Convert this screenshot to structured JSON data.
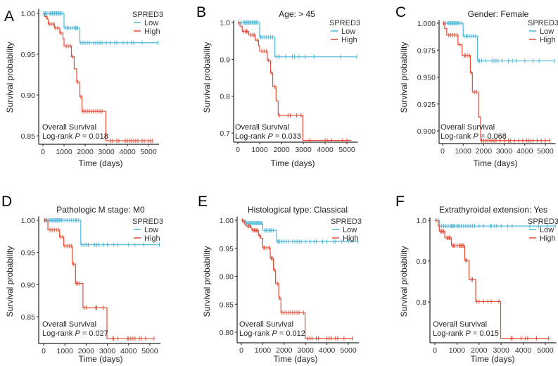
{
  "chart_data": [
    {
      "type": "line",
      "letter": "A",
      "title": "",
      "xlabel": "Time (days)",
      "ylabel": "Survival probability",
      "legend_title": "SPRED3",
      "legend_position": "top-right",
      "annotation": "Overall Survival",
      "test": "Log-rank",
      "p_label": "P",
      "p_value": "0.018",
      "xticks": [
        0,
        1000,
        2000,
        3000,
        4000,
        5000
      ],
      "xlim": [
        -100,
        5500
      ],
      "yticks": [
        "0.85",
        "0.90",
        "0.95",
        "1.00"
      ],
      "ylim": [
        0.843,
        1.003
      ],
      "series": [
        {
          "name": "Low",
          "color": "#4DB8D8",
          "steps": [
            [
              0,
              1.0
            ],
            [
              1000,
              0.982
            ],
            [
              1750,
              0.964
            ]
          ],
          "end": 5450,
          "censor": [
            50,
            120,
            200,
            300,
            350,
            400,
            450,
            500,
            550,
            600,
            650,
            700,
            750,
            800,
            850,
            900,
            1050,
            1150,
            1200,
            1300,
            1400,
            1500,
            1550,
            1600,
            1650,
            1800,
            1900,
            2000,
            2100,
            2200,
            2400,
            2500,
            2600,
            2700,
            2800,
            3000,
            3200,
            3400,
            3500,
            3800,
            4000,
            4200,
            4300,
            4700,
            5450
          ]
        },
        {
          "name": "High",
          "color": "#E64B35",
          "steps": [
            [
              0,
              1.0
            ],
            [
              80,
              0.996
            ],
            [
              200,
              0.993
            ],
            [
              250,
              0.987
            ],
            [
              550,
              0.982
            ],
            [
              800,
              0.976
            ],
            [
              950,
              0.969
            ],
            [
              1000,
              0.96
            ],
            [
              1350,
              0.947
            ],
            [
              1480,
              0.932
            ],
            [
              1600,
              0.916
            ],
            [
              1750,
              0.898
            ],
            [
              1850,
              0.88
            ],
            [
              2980,
              0.844
            ]
          ],
          "end": 5200,
          "censor": [
            150,
            300,
            400,
            500,
            600,
            700,
            850,
            1100,
            1200,
            1300,
            1400,
            1650,
            1800,
            1900,
            2000,
            2100,
            2200,
            2300,
            2400,
            2500,
            2600,
            2700,
            2800,
            3200,
            3300,
            3500,
            3600,
            3900,
            4000,
            4100,
            4200,
            4300,
            4400,
            4500,
            4700,
            4800,
            5000,
            5100,
            5200
          ]
        }
      ]
    },
    {
      "type": "line",
      "letter": "B",
      "title": "Age: > 45",
      "xlabel": "Time (days)",
      "ylabel": "Survival probability",
      "legend_title": "SPRED3",
      "legend_position": "top-right",
      "annotation": "Overall Survival",
      "test": "Log-rank",
      "p_label": "P",
      "p_value": "0.033",
      "xticks": [
        0,
        1000,
        2000,
        3000,
        4000,
        5000
      ],
      "xlim": [
        -100,
        5500
      ],
      "yticks": [
        "0.7",
        "0.8",
        "0.9",
        "1.0"
      ],
      "ylim": [
        0.68,
        1.0
      ],
      "series": [
        {
          "name": "Low",
          "color": "#4DB8D8",
          "steps": [
            [
              0,
              1.0
            ],
            [
              1000,
              0.96
            ],
            [
              1700,
              0.907
            ]
          ],
          "end": 5450,
          "censor": [
            50,
            150,
            250,
            300,
            350,
            400,
            450,
            500,
            550,
            600,
            650,
            700,
            750,
            800,
            850,
            900,
            1050,
            1100,
            1200,
            1300,
            1400,
            1500,
            1600,
            1800,
            1900,
            2200,
            2500,
            2600,
            2800,
            3100,
            3500,
            4700,
            5450
          ]
        },
        {
          "name": "High",
          "color": "#E64B35",
          "steps": [
            [
              0,
              1.0
            ],
            [
              100,
              0.99
            ],
            [
              200,
              0.976
            ],
            [
              500,
              0.966
            ],
            [
              800,
              0.952
            ],
            [
              950,
              0.937
            ],
            [
              1000,
              0.922
            ],
            [
              1350,
              0.897
            ],
            [
              1500,
              0.863
            ],
            [
              1600,
              0.826
            ],
            [
              1750,
              0.787
            ],
            [
              1850,
              0.748
            ],
            [
              2980,
              0.68
            ]
          ],
          "end": 5200,
          "censor": [
            50,
            250,
            350,
            400,
            450,
            600,
            700,
            750,
            900,
            1100,
            1200,
            1300,
            1400,
            1550,
            1700,
            1900,
            2300,
            2400,
            2700,
            2900,
            3300,
            4000,
            4100,
            4300,
            4800,
            5000
          ]
        }
      ]
    },
    {
      "type": "line",
      "letter": "C",
      "title": "Gender: Female",
      "xlabel": "Time (days)",
      "ylabel": "Survival probability",
      "legend_title": "SPRED3",
      "legend_position": "top-right",
      "annotation": "Overall Survival",
      "test": "Log-rank",
      "p_label": "P",
      "p_value": "0.068",
      "xticks": [
        0,
        1000,
        2000,
        3000,
        4000,
        5000
      ],
      "xlim": [
        -100,
        5500
      ],
      "yticks": [
        "0.900",
        "0.925",
        "0.950",
        "0.975",
        "1.000"
      ],
      "ylim": [
        0.889,
        1.001
      ],
      "series": [
        {
          "name": "Low",
          "color": "#4DB8D8",
          "steps": [
            [
              0,
              1.0
            ],
            [
              1000,
              0.988
            ],
            [
              1700,
              0.965
            ]
          ],
          "end": 5450,
          "censor": [
            50,
            150,
            250,
            300,
            350,
            400,
            450,
            500,
            550,
            600,
            650,
            700,
            750,
            800,
            900,
            1050,
            1150,
            1200,
            1300,
            1400,
            1500,
            1600,
            1750,
            1800,
            1900,
            2100,
            2400,
            2500,
            2600,
            2700,
            2900,
            3200,
            3400,
            3600,
            4000,
            4400,
            4700,
            5450
          ]
        },
        {
          "name": "High",
          "color": "#E64B35",
          "steps": [
            [
              0,
              1.0
            ],
            [
              100,
              0.995
            ],
            [
              200,
              0.989
            ],
            [
              750,
              0.98
            ],
            [
              950,
              0.97
            ],
            [
              1350,
              0.954
            ],
            [
              1450,
              0.936
            ],
            [
              1750,
              0.913
            ],
            [
              1850,
              0.891
            ]
          ],
          "end": 5200,
          "censor": [
            50,
            300,
            400,
            500,
            600,
            700,
            850,
            1050,
            1100,
            1200,
            1300,
            1400,
            1550,
            1650,
            1900,
            2000,
            2100,
            2200,
            2300,
            2400,
            2500,
            2600,
            2800,
            3000,
            3200,
            3300,
            3500,
            3700,
            3900,
            4100,
            4200,
            4300,
            4400,
            4600,
            4800,
            5000,
            5200
          ]
        }
      ]
    },
    {
      "type": "line",
      "letter": "D",
      "title": "Pathologic M stage: M0",
      "xlabel": "Time (days)",
      "ylabel": "Survival probability",
      "legend_title": "SPRED3",
      "legend_position": "top-right",
      "annotation": "Overall Survival",
      "test": "Log-rank",
      "p_label": "P",
      "p_value": "0.027",
      "xticks": [
        0,
        1000,
        2000,
        3000,
        4000,
        5000
      ],
      "xlim": [
        -100,
        5500
      ],
      "yticks": [
        "0.85",
        "0.90",
        "0.95",
        "1.00"
      ],
      "ylim": [
        0.814,
        1.003
      ],
      "series": [
        {
          "name": "Low",
          "color": "#4DB8D8",
          "steps": [
            [
              0,
              1.0
            ],
            [
              1750,
              0.962
            ]
          ],
          "end": 5450,
          "censor": [
            50,
            150,
            250,
            300,
            350,
            400,
            450,
            500,
            550,
            600,
            650,
            700,
            750,
            800,
            850,
            900,
            1000,
            1100,
            1200,
            1300,
            1400,
            1500,
            1550,
            1650,
            1800,
            1900,
            2000,
            2100,
            2400,
            2500,
            2600,
            2800,
            3000,
            3300,
            3500,
            4000,
            4300,
            4700,
            5450
          ]
        },
        {
          "name": "High",
          "color": "#E64B35",
          "steps": [
            [
              0,
              1.0
            ],
            [
              200,
              0.985
            ],
            [
              750,
              0.974
            ],
            [
              950,
              0.96
            ],
            [
              1350,
              0.932
            ],
            [
              1500,
              0.902
            ],
            [
              1850,
              0.864
            ],
            [
              2980,
              0.816
            ]
          ],
          "end": 5200,
          "censor": [
            50,
            100,
            300,
            400,
            500,
            600,
            700,
            800,
            900,
            1000,
            1100,
            1200,
            1300,
            1400,
            1550,
            1600,
            1700,
            1900,
            2000,
            2450,
            2500,
            2800,
            3250,
            3300,
            3500,
            3950,
            4000,
            4100,
            4200,
            4300,
            4500,
            4600,
            4800,
            5200
          ]
        }
      ]
    },
    {
      "type": "line",
      "letter": "E",
      "title": "Histological type: Classical",
      "xlabel": "Time (days)",
      "ylabel": "Survival probability",
      "legend_title": "SPRED3",
      "legend_position": "top-right",
      "annotation": "Overall Survival",
      "test": "Log-rank",
      "p_label": "P",
      "p_value": "0.012",
      "xticks": [
        0,
        1000,
        2000,
        3000,
        4000,
        5000
      ],
      "xlim": [
        -100,
        5500
      ],
      "yticks": [
        "0.80",
        "0.85",
        "0.90",
        "0.95",
        "1.00"
      ],
      "ylim": [
        0.787,
        1.003
      ],
      "series": [
        {
          "name": "Low",
          "color": "#4DB8D8",
          "steps": [
            [
              0,
              1.0
            ],
            [
              200,
              0.995
            ],
            [
              1000,
              0.982
            ],
            [
              1650,
              0.962
            ]
          ],
          "end": 5450,
          "censor": [
            50,
            250,
            300,
            350,
            400,
            450,
            500,
            550,
            600,
            650,
            700,
            750,
            800,
            850,
            900,
            950,
            1100,
            1150,
            1200,
            1300,
            1350,
            1400,
            1500,
            1700,
            1750,
            1800,
            1900,
            2000,
            2100,
            2200,
            2400,
            2500,
            2600,
            2700,
            2800,
            3000,
            3200,
            3400,
            3500,
            3800,
            4000,
            4300,
            4400,
            4700,
            5000,
            5450
          ]
        },
        {
          "name": "High",
          "color": "#E64B35",
          "steps": [
            [
              0,
              1.0
            ],
            [
              100,
              0.996
            ],
            [
              200,
              0.99
            ],
            [
              450,
              0.986
            ],
            [
              500,
              0.982
            ],
            [
              800,
              0.973
            ],
            [
              900,
              0.968
            ],
            [
              1000,
              0.951
            ],
            [
              1350,
              0.932
            ],
            [
              1500,
              0.911
            ],
            [
              1600,
              0.887
            ],
            [
              1750,
              0.861
            ],
            [
              1850,
              0.835
            ],
            [
              2980,
              0.789
            ]
          ],
          "end": 5200,
          "censor": [
            50,
            150,
            300,
            350,
            400,
            550,
            600,
            650,
            700,
            750,
            850,
            1050,
            1100,
            1200,
            1300,
            1400,
            1450,
            1550,
            1700,
            1800,
            1900,
            2000,
            2100,
            2200,
            2300,
            2400,
            2500,
            2600,
            2700,
            2900,
            3100,
            3200,
            3300,
            3500,
            3600,
            4000,
            4100,
            4200,
            4400,
            4500,
            4800,
            5200
          ]
        }
      ]
    },
    {
      "type": "line",
      "letter": "F",
      "title": "Extrathyroidal extension: Yes",
      "xlabel": "Time (days)",
      "ylabel": "Survival probability",
      "legend_title": "SPRED3",
      "legend_position": "top-right",
      "annotation": "Overall Survival",
      "test": "Log-rank",
      "p_label": "P",
      "p_value": "0.015",
      "xticks": [
        0,
        1000,
        2000,
        3000,
        4000,
        5000
      ],
      "xlim": [
        -100,
        5500
      ],
      "yticks": [
        "0.8",
        "0.9",
        "1.0"
      ],
      "ylim": [
        0.709,
        1.002
      ],
      "series": [
        {
          "name": "Low",
          "color": "#4DB8D8",
          "steps": [
            [
              0,
              1.0
            ],
            [
              200,
              0.986
            ]
          ],
          "end": 5450,
          "censor": [
            50,
            150,
            300,
            400,
            500,
            600,
            700,
            750,
            800,
            850,
            900,
            1000,
            1050,
            1100,
            1200,
            1300,
            1400,
            1500,
            1600,
            1700,
            1800,
            2000,
            2200,
            2500,
            2550,
            2700,
            2800,
            3000,
            3300,
            3500,
            4300,
            4700,
            5100,
            5450
          ]
        },
        {
          "name": "High",
          "color": "#E64B35",
          "steps": [
            [
              0,
              1.0
            ],
            [
              150,
              0.987
            ],
            [
              200,
              0.973
            ],
            [
              450,
              0.957
            ],
            [
              750,
              0.938
            ],
            [
              1350,
              0.902
            ],
            [
              1550,
              0.855
            ],
            [
              1850,
              0.801
            ],
            [
              2980,
              0.711
            ]
          ],
          "end": 5200,
          "censor": [
            50,
            250,
            300,
            350,
            400,
            550,
            600,
            650,
            700,
            800,
            850,
            900,
            1000,
            1100,
            1150,
            1200,
            1250,
            1300,
            1400,
            1450,
            1650,
            1700,
            1900,
            2000,
            2200,
            2400,
            2550,
            2900,
            3450,
            3500,
            3900,
            4100,
            4200,
            4600,
            5150
          ]
        }
      ]
    }
  ]
}
